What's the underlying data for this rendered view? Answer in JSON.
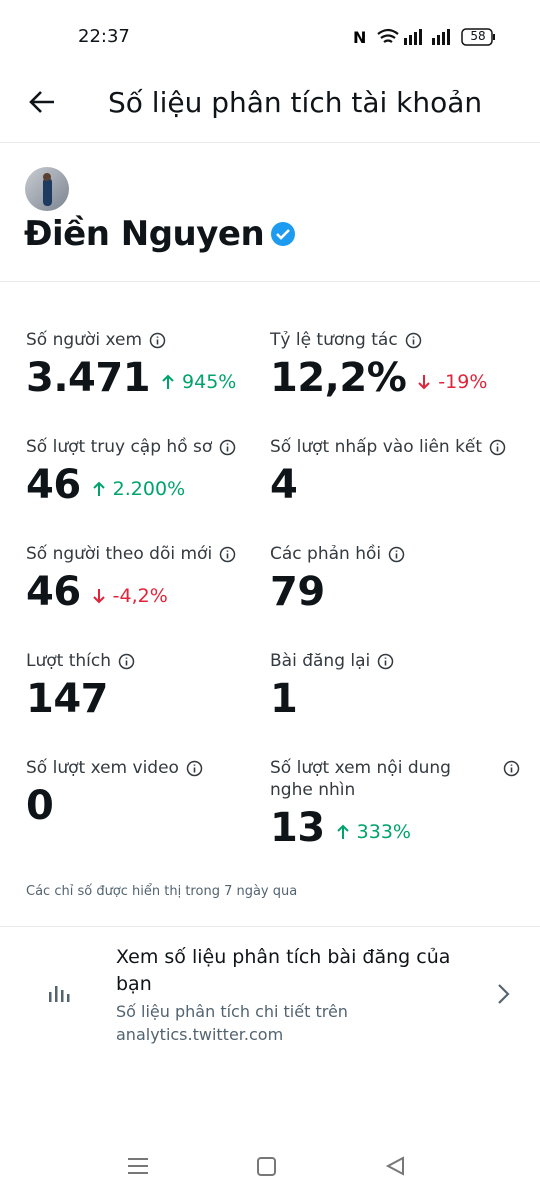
{
  "status_bar": {
    "time": "22:37",
    "battery": "58"
  },
  "header": {
    "title": "Số liệu phân tích tài khoản"
  },
  "profile": {
    "name": "Điền Nguyen"
  },
  "metrics": [
    {
      "label": "Số người xem",
      "value": "3.471",
      "change": "945%",
      "trend": "up"
    },
    {
      "label": "Tỷ lệ tương tác",
      "value": "12,2%",
      "change": "-19%",
      "trend": "down"
    },
    {
      "label": "Số lượt truy cập hồ sơ",
      "value": "46",
      "change": "2.200%",
      "trend": "up"
    },
    {
      "label": "Số lượt nhấp vào liên kết",
      "value": "4"
    },
    {
      "label": "Số người theo dõi mới",
      "value": "46",
      "change": "-4,2%",
      "trend": "down"
    },
    {
      "label": "Các phản hồi",
      "value": "79"
    },
    {
      "label": "Lượt thích",
      "value": "147"
    },
    {
      "label": "Bài đăng lại",
      "value": "1"
    },
    {
      "label": "Số lượt xem video",
      "value": "0"
    },
    {
      "label": "Số lượt xem nội dung nghe nhìn",
      "value": "13",
      "change": "333%",
      "trend": "up"
    }
  ],
  "note": "Các chỉ số được hiển thị trong 7 ngày qua",
  "link_card": {
    "title": "Xem số liệu phân tích bài đăng của bạn",
    "subtitle": "Số liệu phân tích chi tiết trên analytics.twitter.com"
  }
}
